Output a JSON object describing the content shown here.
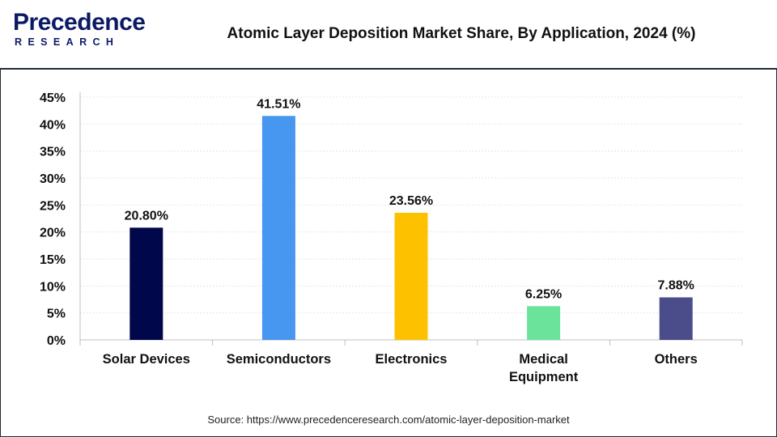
{
  "header": {
    "logo_top": "Precedence",
    "logo_bottom": "RESEARCH",
    "title": "Atomic Layer Deposition Market Share, By Application, 2024 (%)"
  },
  "chart_data": {
    "type": "bar",
    "title": "Atomic Layer Deposition Market Share, By Application, 2024 (%)",
    "xlabel": "",
    "ylabel": "",
    "ylim": [
      0,
      45
    ],
    "yticks": [
      "0%",
      "5%",
      "10%",
      "15%",
      "20%",
      "25%",
      "30%",
      "35%",
      "40%",
      "45%"
    ],
    "grid": true,
    "categories": [
      [
        "Solar Devices"
      ],
      [
        "Semiconductors"
      ],
      [
        "Electronics"
      ],
      [
        "Medical",
        "Equipment"
      ],
      [
        "Others"
      ]
    ],
    "values": [
      20.8,
      41.51,
      23.56,
      6.25,
      7.88
    ],
    "value_labels": [
      "20.80%",
      "41.51%",
      "23.56%",
      "6.25%",
      "7.88%"
    ],
    "colors": [
      "#00074a",
      "#4796f0",
      "#fdc100",
      "#6be39a",
      "#4b4d8a"
    ]
  },
  "footer": {
    "source": "Source: https://www.precedenceresearch.com/atomic-layer-deposition-market"
  }
}
